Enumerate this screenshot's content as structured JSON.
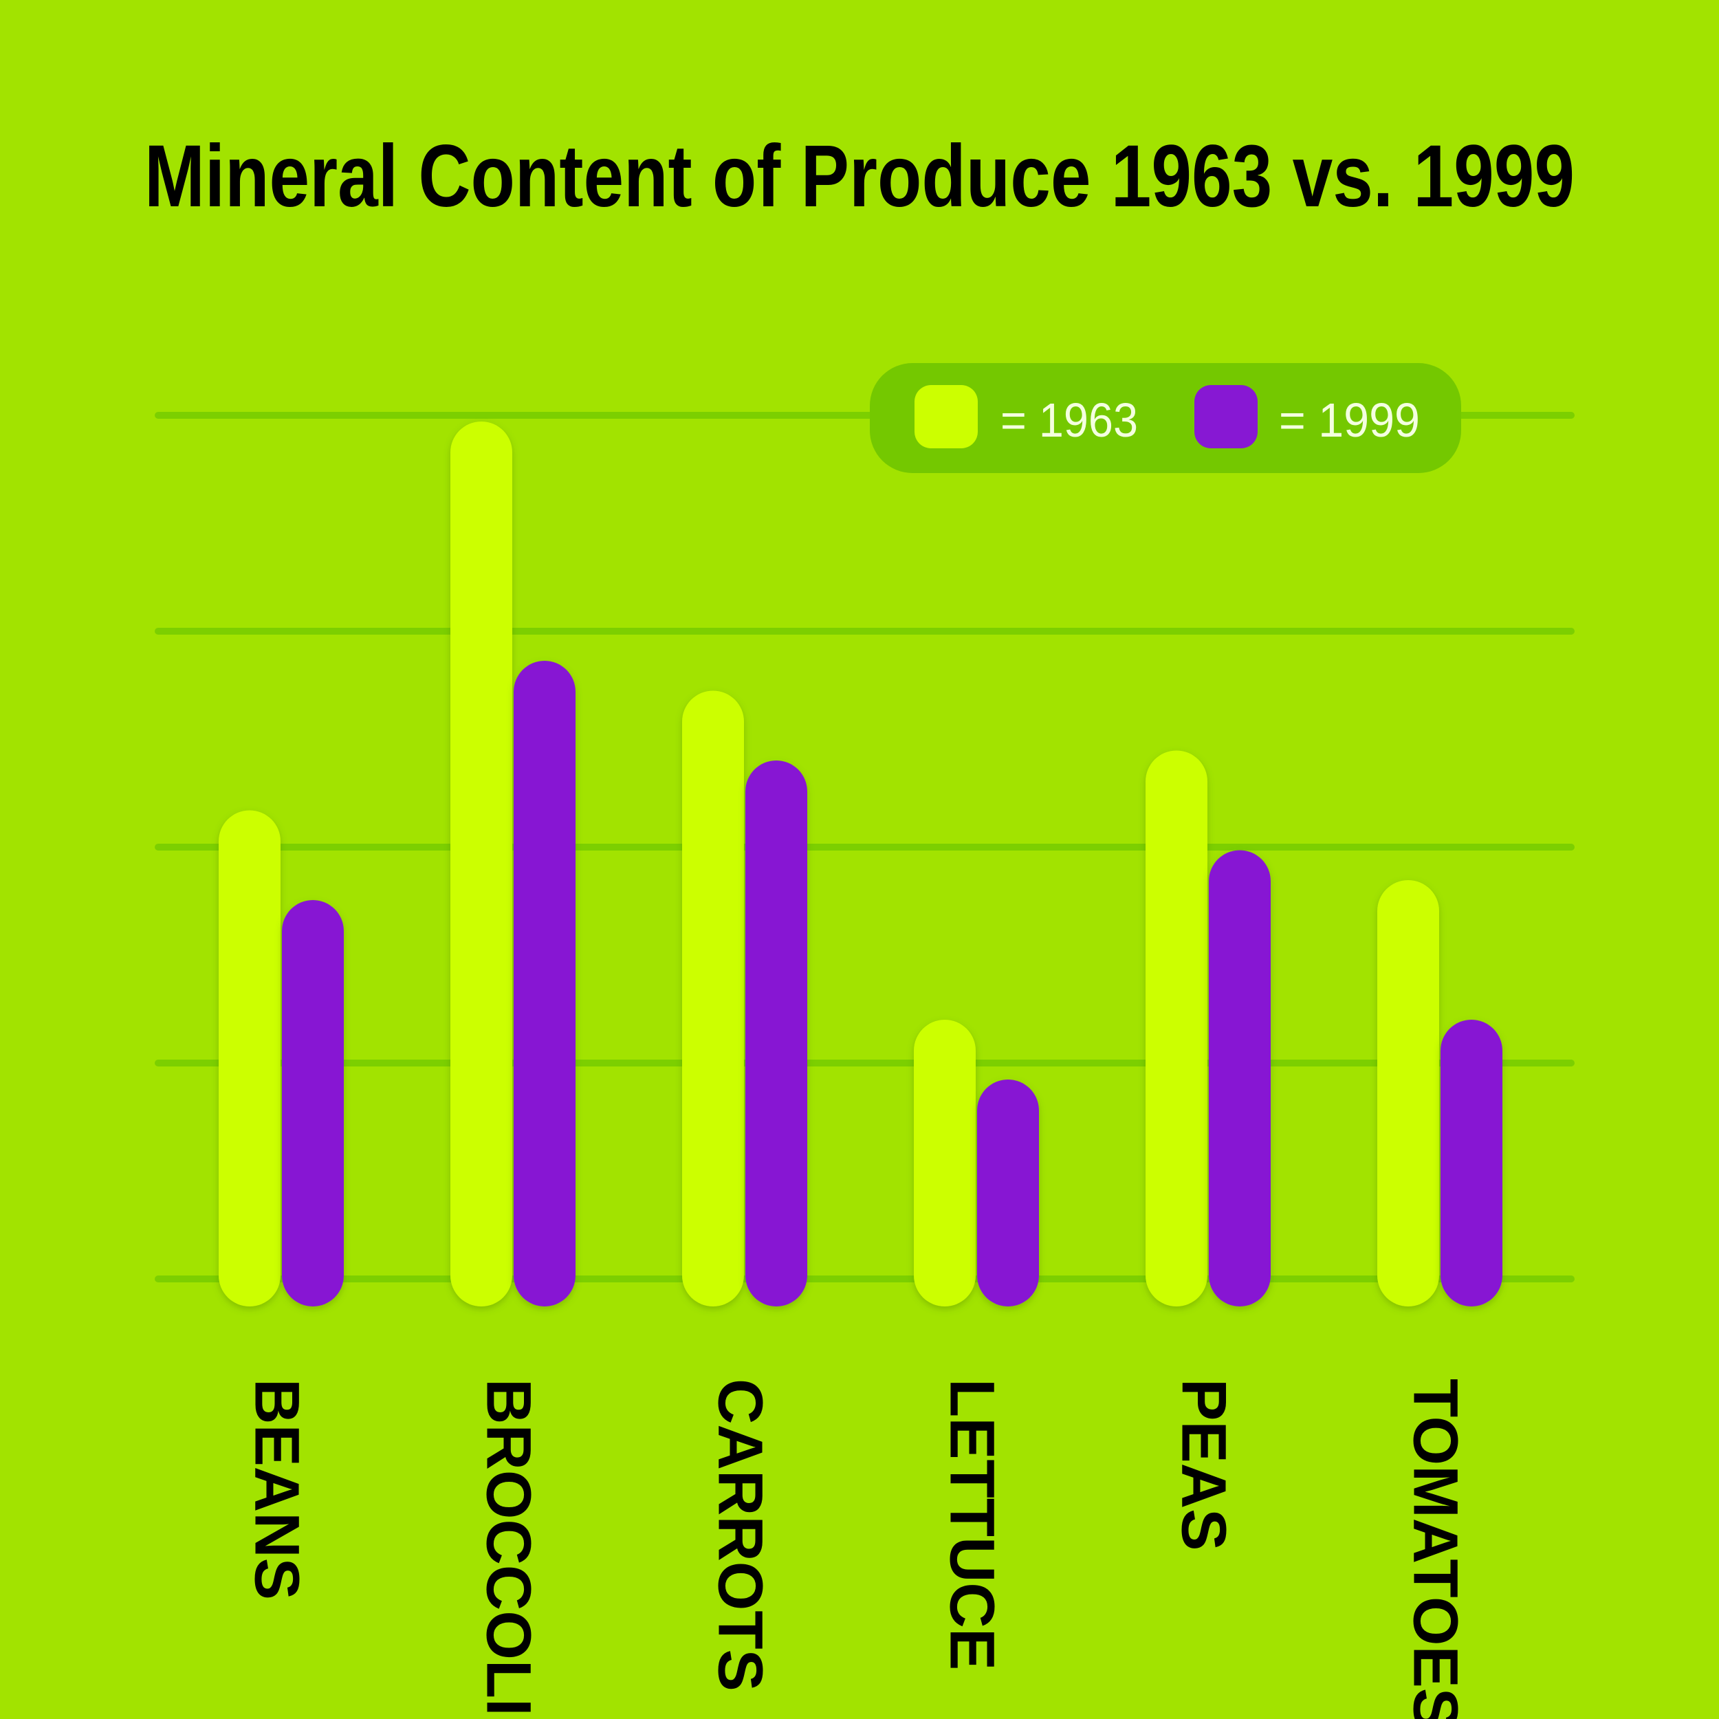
{
  "chart_data": {
    "type": "bar",
    "title": "Mineral Content of Produce 1963 vs. 1999",
    "categories": [
      "BEANS",
      "BROCCOLI",
      "CARROTS",
      "LETTUCE",
      "PEAS",
      "TOMATOES"
    ],
    "series": [
      {
        "name": "= 1963",
        "color": "#ccff00",
        "values": [
          47,
          86,
          59,
          26,
          53,
          40
        ]
      },
      {
        "name": "= 1999",
        "color": "#8718d3",
        "values": [
          38,
          62,
          52,
          20,
          43,
          26
        ]
      }
    ],
    "ylim": [
      0,
      100
    ],
    "grid": true,
    "legend_position": "top-right",
    "colors": {
      "background": "#a2e300",
      "gridline": "#7ccf00",
      "legend_box": "#74c800"
    }
  }
}
